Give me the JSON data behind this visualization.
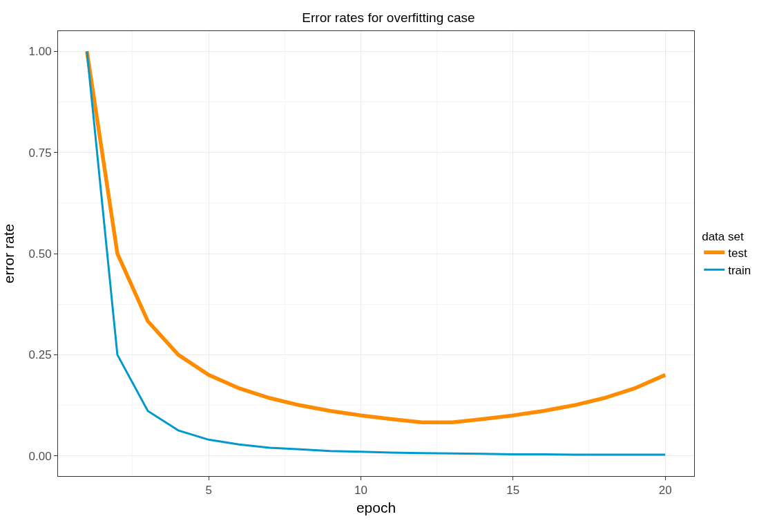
{
  "chart_data": {
    "type": "line",
    "title": "Error rates for overfitting case",
    "xlabel": "epoch",
    "ylabel": "error rate",
    "legend_title": "data set",
    "x": [
      1,
      2,
      3,
      4,
      5,
      6,
      7,
      8,
      9,
      10,
      11,
      12,
      13,
      14,
      15,
      16,
      17,
      18,
      19,
      20
    ],
    "series": [
      {
        "name": "test",
        "color": "#ff8c00",
        "values": [
          1,
          0.5,
          0.333,
          0.25,
          0.2,
          0.167,
          0.143,
          0.125,
          0.111,
          0.1,
          0.091,
          0.083,
          0.083,
          0.091,
          0.1,
          0.111,
          0.125,
          0.143,
          0.167,
          0.2
        ]
      },
      {
        "name": "train",
        "color": "#0099cc",
        "values": [
          1,
          0.25,
          0.111,
          0.063,
          0.04,
          0.028,
          0.02,
          0.016,
          0.012,
          0.01,
          0.008,
          0.007,
          0.006,
          0.005,
          0.004,
          0.004,
          0.003,
          0.003,
          0.003,
          0.003
        ]
      }
    ],
    "xlim": [
      0.05,
      20.95
    ],
    "ylim": [
      -0.05,
      1.05
    ],
    "xticks": [
      5,
      10,
      15,
      20
    ],
    "yticks": [
      {
        "value": 0,
        "label": "0.00"
      },
      {
        "value": 0.25,
        "label": "0.25"
      },
      {
        "value": 0.5,
        "label": "0.50"
      },
      {
        "value": 0.75,
        "label": "0.75"
      },
      {
        "value": 1,
        "label": "1.00"
      }
    ],
    "grid": true,
    "legend": "right",
    "marker": "none",
    "line_style": "solid"
  }
}
